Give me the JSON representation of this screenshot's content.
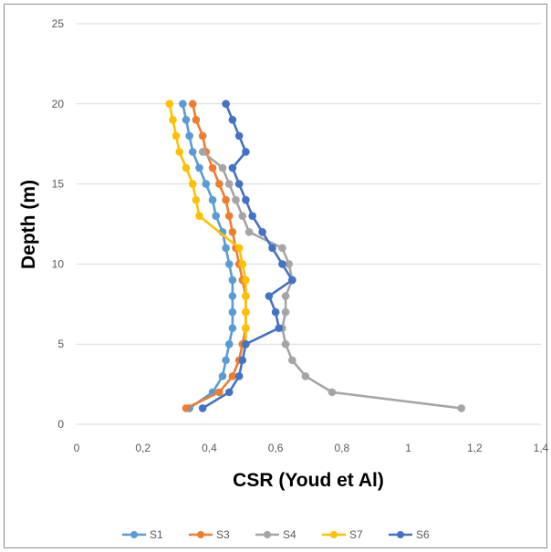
{
  "chart_data": {
    "type": "line",
    "title": "",
    "xlabel": "CSR (Youd et Al)",
    "ylabel": "Depth (m)",
    "xlim": [
      0,
      1.4
    ],
    "ylim": [
      0,
      25
    ],
    "x_ticks": [
      "0",
      "0,2",
      "0,4",
      "0,6",
      "0,8",
      "1",
      "1,2",
      "1,4"
    ],
    "y_ticks": [
      "0",
      "5",
      "10",
      "15",
      "20",
      "25"
    ],
    "x_tick_values": [
      0,
      0.2,
      0.4,
      0.6,
      0.8,
      1.0,
      1.2,
      1.4
    ],
    "y_tick_values": [
      0,
      5,
      10,
      15,
      20,
      25
    ],
    "grid": "horizontal",
    "legend_position": "bottom",
    "series": [
      {
        "name": "S1",
        "color": "#5B9BD5",
        "points": [
          [
            0.32,
            20
          ],
          [
            0.33,
            19
          ],
          [
            0.34,
            18
          ],
          [
            0.35,
            17
          ],
          [
            0.37,
            16
          ],
          [
            0.39,
            15
          ],
          [
            0.41,
            14
          ],
          [
            0.42,
            13
          ],
          [
            0.44,
            12
          ],
          [
            0.45,
            11
          ],
          [
            0.46,
            10
          ],
          [
            0.47,
            9
          ],
          [
            0.47,
            8
          ],
          [
            0.47,
            7
          ],
          [
            0.47,
            6
          ],
          [
            0.46,
            5
          ],
          [
            0.45,
            4
          ],
          [
            0.44,
            3
          ],
          [
            0.41,
            2
          ],
          [
            0.34,
            1
          ]
        ]
      },
      {
        "name": "S3",
        "color": "#ED7D31",
        "points": [
          [
            0.35,
            20
          ],
          [
            0.36,
            19
          ],
          [
            0.38,
            18
          ],
          [
            0.39,
            17
          ],
          [
            0.41,
            16
          ],
          [
            0.43,
            15
          ],
          [
            0.45,
            14
          ],
          [
            0.46,
            13
          ],
          [
            0.47,
            12
          ],
          [
            0.48,
            11
          ],
          [
            0.49,
            10
          ],
          [
            0.5,
            9
          ],
          [
            0.51,
            8
          ],
          [
            0.51,
            7
          ],
          [
            0.51,
            6
          ],
          [
            0.5,
            5
          ],
          [
            0.49,
            4
          ],
          [
            0.47,
            3
          ],
          [
            0.43,
            2
          ],
          [
            0.33,
            1
          ]
        ]
      },
      {
        "name": "S4",
        "color": "#A5A5A5",
        "points": [
          [
            0.38,
            17
          ],
          [
            0.44,
            16
          ],
          [
            0.46,
            15
          ],
          [
            0.48,
            14
          ],
          [
            0.5,
            13
          ],
          [
            0.52,
            12
          ],
          [
            0.62,
            11
          ],
          [
            0.64,
            10
          ],
          [
            0.65,
            9
          ],
          [
            0.63,
            8
          ],
          [
            0.63,
            7
          ],
          [
            0.62,
            6
          ],
          [
            0.63,
            5
          ],
          [
            0.65,
            4
          ],
          [
            0.69,
            3
          ],
          [
            0.77,
            2
          ],
          [
            1.16,
            1
          ]
        ]
      },
      {
        "name": "S7",
        "color": "#FFC000",
        "points": [
          [
            0.28,
            20
          ],
          [
            0.29,
            19
          ],
          [
            0.3,
            18
          ],
          [
            0.31,
            17
          ],
          [
            0.33,
            16
          ],
          [
            0.35,
            15
          ],
          [
            0.36,
            14
          ],
          [
            0.37,
            13
          ],
          [
            0.49,
            11
          ],
          [
            0.5,
            10
          ],
          [
            0.51,
            9
          ],
          [
            0.51,
            8
          ],
          [
            0.51,
            7
          ],
          [
            0.51,
            6
          ],
          [
            0.51,
            5
          ]
        ]
      },
      {
        "name": "S6",
        "color": "#4472C4",
        "points": [
          [
            0.45,
            20
          ],
          [
            0.47,
            19
          ],
          [
            0.49,
            18
          ],
          [
            0.51,
            17
          ],
          [
            0.47,
            16
          ],
          [
            0.49,
            15
          ],
          [
            0.51,
            14
          ],
          [
            0.53,
            13
          ],
          [
            0.56,
            12
          ],
          [
            0.59,
            11
          ],
          [
            0.62,
            10
          ],
          [
            0.65,
            9
          ],
          [
            0.58,
            8
          ],
          [
            0.6,
            7
          ],
          [
            0.61,
            6
          ],
          [
            0.51,
            5
          ],
          [
            0.5,
            4
          ],
          [
            0.49,
            3
          ],
          [
            0.46,
            2
          ],
          [
            0.38,
            1
          ]
        ]
      }
    ]
  }
}
